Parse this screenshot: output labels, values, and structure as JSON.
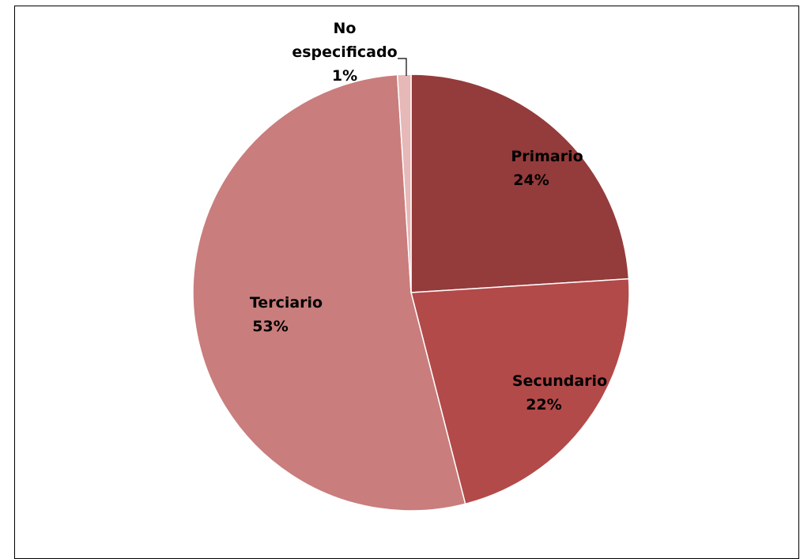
{
  "chart_data": {
    "type": "pie",
    "title": "",
    "slices": [
      {
        "label": "Primario",
        "value": 24,
        "value_label": "24%",
        "color": "#943B3B"
      },
      {
        "label": "Secundario",
        "value": 22,
        "value_label": "22%",
        "color": "#B24A49"
      },
      {
        "label": "Terciario",
        "value": 53,
        "value_label": "53%",
        "color": "#C97D7C"
      },
      {
        "label": "No especificado",
        "value": 1,
        "value_label": "1%",
        "color": "#E6B8B7"
      }
    ],
    "legend": "none"
  }
}
